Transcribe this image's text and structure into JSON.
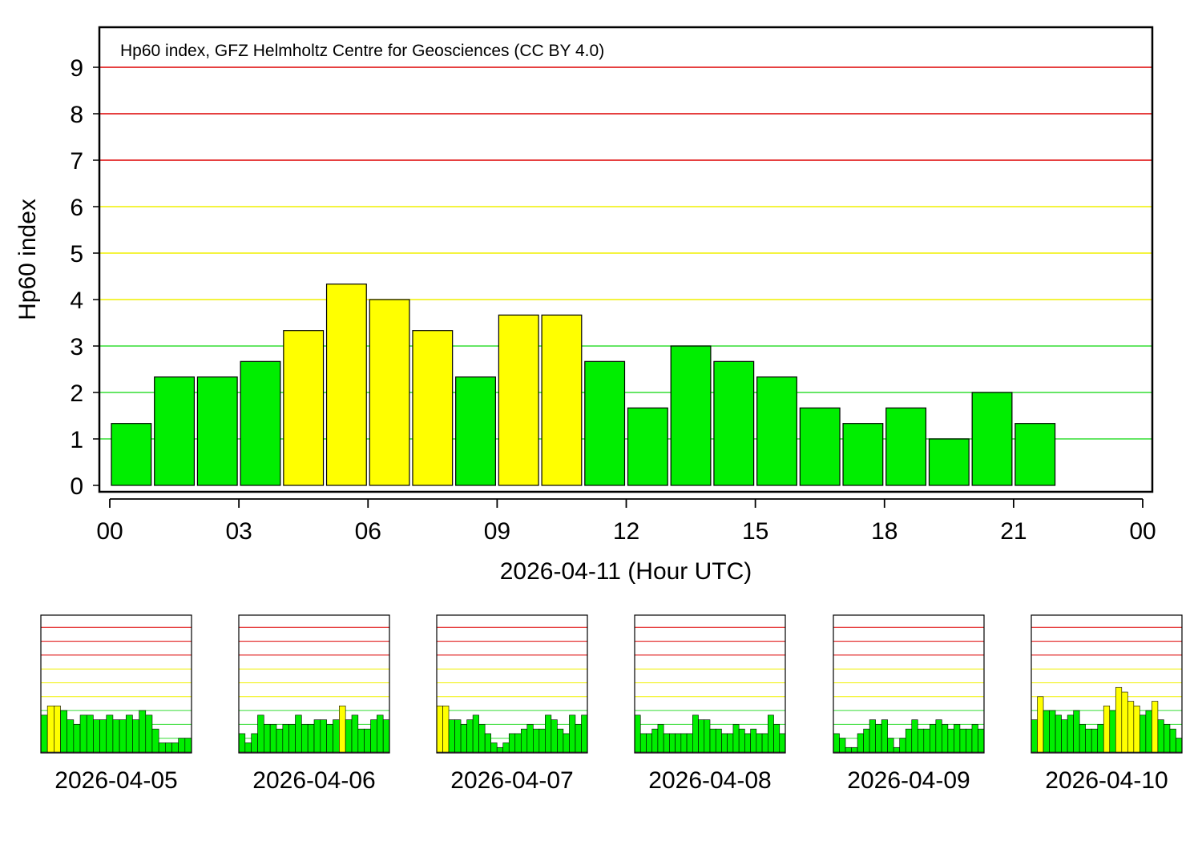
{
  "colors": {
    "green": "#00ee00",
    "yellow": "#ffff00",
    "red_line": "#dd0000",
    "yellow_line": "#f0f000",
    "green_line": "#33dd33"
  },
  "chart_data": [
    {
      "type": "bar",
      "title": "Hp60 index, GFZ Helmholtz Centre for Geosciences (CC BY 4.0)",
      "xlabel": "2026-04-11 (Hour UTC)",
      "ylabel": "Hp60 index",
      "ylim": [
        0,
        9
      ],
      "xlim": [
        0,
        24
      ],
      "x_ticks": [
        "00",
        "03",
        "06",
        "09",
        "12",
        "15",
        "18",
        "21",
        "00"
      ],
      "y_ticks": [
        "0",
        "1",
        "2",
        "3",
        "4",
        "5",
        "6",
        "7",
        "8",
        "9"
      ],
      "yellow_threshold": 3,
      "reference_lines": [
        {
          "y": 1,
          "color": "green"
        },
        {
          "y": 2,
          "color": "green"
        },
        {
          "y": 3,
          "color": "green"
        },
        {
          "y": 4,
          "color": "yellow"
        },
        {
          "y": 5,
          "color": "yellow"
        },
        {
          "y": 6,
          "color": "yellow"
        },
        {
          "y": 7,
          "color": "red"
        },
        {
          "y": 8,
          "color": "red"
        },
        {
          "y": 9,
          "color": "red"
        }
      ],
      "values": [
        1.333,
        2.333,
        2.333,
        2.667,
        3.333,
        4.333,
        4.0,
        3.333,
        2.333,
        3.667,
        3.667,
        2.667,
        1.667,
        3.0,
        2.667,
        2.333,
        1.667,
        1.333,
        1.667,
        1.0,
        2.0,
        1.333
      ]
    },
    {
      "type": "bar",
      "xlabel": "2026-04-05",
      "ylim": [
        0,
        9
      ],
      "values": [
        2.667,
        3.333,
        3.333,
        3.0,
        2.333,
        2.0,
        2.667,
        2.667,
        2.333,
        2.333,
        2.667,
        2.333,
        2.333,
        2.667,
        2.333,
        3.0,
        2.667,
        1.667,
        0.667,
        0.667,
        0.667,
        1.0,
        1.0
      ]
    },
    {
      "type": "bar",
      "xlabel": "2026-04-06",
      "ylim": [
        0,
        9
      ],
      "values": [
        1.333,
        0.667,
        1.333,
        2.667,
        2.0,
        2.0,
        1.667,
        2.0,
        2.0,
        2.667,
        2.0,
        2.0,
        2.333,
        2.333,
        2.0,
        2.333,
        3.333,
        2.333,
        2.667,
        1.667,
        1.667,
        2.333,
        2.667,
        2.333
      ]
    },
    {
      "type": "bar",
      "xlabel": "2026-04-07",
      "ylim": [
        0,
        9
      ],
      "values": [
        3.333,
        3.333,
        2.333,
        2.333,
        2.0,
        2.333,
        2.667,
        2.0,
        1.333,
        0.667,
        0.333,
        0.667,
        1.333,
        1.333,
        1.667,
        2.0,
        1.667,
        1.667,
        2.667,
        2.333,
        1.667,
        1.333,
        2.667,
        2.0,
        2.667
      ]
    },
    {
      "type": "bar",
      "xlabel": "2026-04-08",
      "ylim": [
        0,
        9
      ],
      "values": [
        2.667,
        1.333,
        1.333,
        1.667,
        2.0,
        1.333,
        1.333,
        1.333,
        1.333,
        1.333,
        2.667,
        2.333,
        2.333,
        1.667,
        1.667,
        1.333,
        1.333,
        2.0,
        1.667,
        1.333,
        1.667,
        1.333,
        1.333,
        2.667,
        2.0,
        1.333
      ]
    },
    {
      "type": "bar",
      "xlabel": "2026-04-09",
      "ylim": [
        0,
        9
      ],
      "values": [
        1.333,
        1.0,
        0.333,
        0.333,
        1.333,
        1.667,
        2.333,
        2.0,
        2.333,
        1.0,
        0.333,
        1.0,
        1.667,
        2.333,
        1.667,
        1.667,
        2.0,
        2.333,
        2.0,
        1.667,
        2.0,
        1.667,
        1.667,
        2.0,
        1.667
      ]
    },
    {
      "type": "bar",
      "xlabel": "2026-04-10",
      "ylim": [
        0,
        9
      ],
      "values": [
        2.333,
        4.0,
        3.0,
        3.0,
        2.667,
        2.333,
        2.667,
        3.0,
        2.0,
        1.667,
        1.667,
        2.0,
        3.333,
        3.0,
        4.667,
        4.333,
        3.667,
        3.333,
        2.667,
        3.0,
        3.667,
        2.333,
        2.0,
        1.667,
        1.0
      ]
    }
  ]
}
